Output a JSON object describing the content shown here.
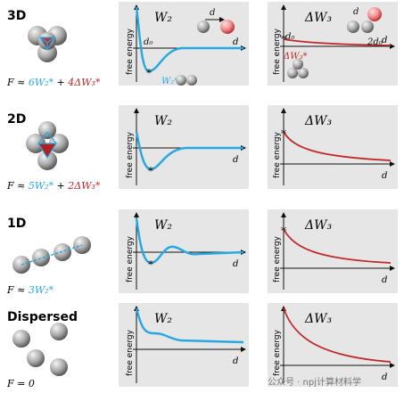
{
  "axis_labels": {
    "y": "free energy",
    "x": "d"
  },
  "rows": [
    {
      "label": "3D",
      "formula": [
        {
          "text": "F ≈ "
        },
        {
          "text": "6W₂*",
          "color": "#29a8e0"
        },
        {
          "text": " + "
        },
        {
          "text": "4ΔW₃*",
          "color": "#c0282a"
        }
      ],
      "pair_title": "W₂",
      "triplet_title": "ΔW₃",
      "pair_annotations": [
        "d",
        "d₀",
        "W₂*"
      ],
      "triplet_annotations": [
        "d",
        "d₀",
        "2d₀",
        "ΔW₃*"
      ]
    },
    {
      "label": "2D",
      "formula": [
        {
          "text": "F ≈ "
        },
        {
          "text": "5W₂*",
          "color": "#29a8e0"
        },
        {
          "text": " + "
        },
        {
          "text": "2ΔW₃*",
          "color": "#c0282a"
        }
      ],
      "pair_title": "W₂",
      "triplet_title": "ΔW₃"
    },
    {
      "label": "1D",
      "formula": [
        {
          "text": "F ≈ "
        },
        {
          "text": "3W₂*",
          "color": "#29a8e0"
        }
      ],
      "pair_title": "W₂",
      "triplet_title": "ΔW₃"
    },
    {
      "label": "Dispersed",
      "formula": [
        {
          "text": "F = 0"
        }
      ],
      "pair_title": "W₂",
      "triplet_title": "ΔW₃"
    }
  ],
  "watermark": "公众号 · npj计算材料学"
}
